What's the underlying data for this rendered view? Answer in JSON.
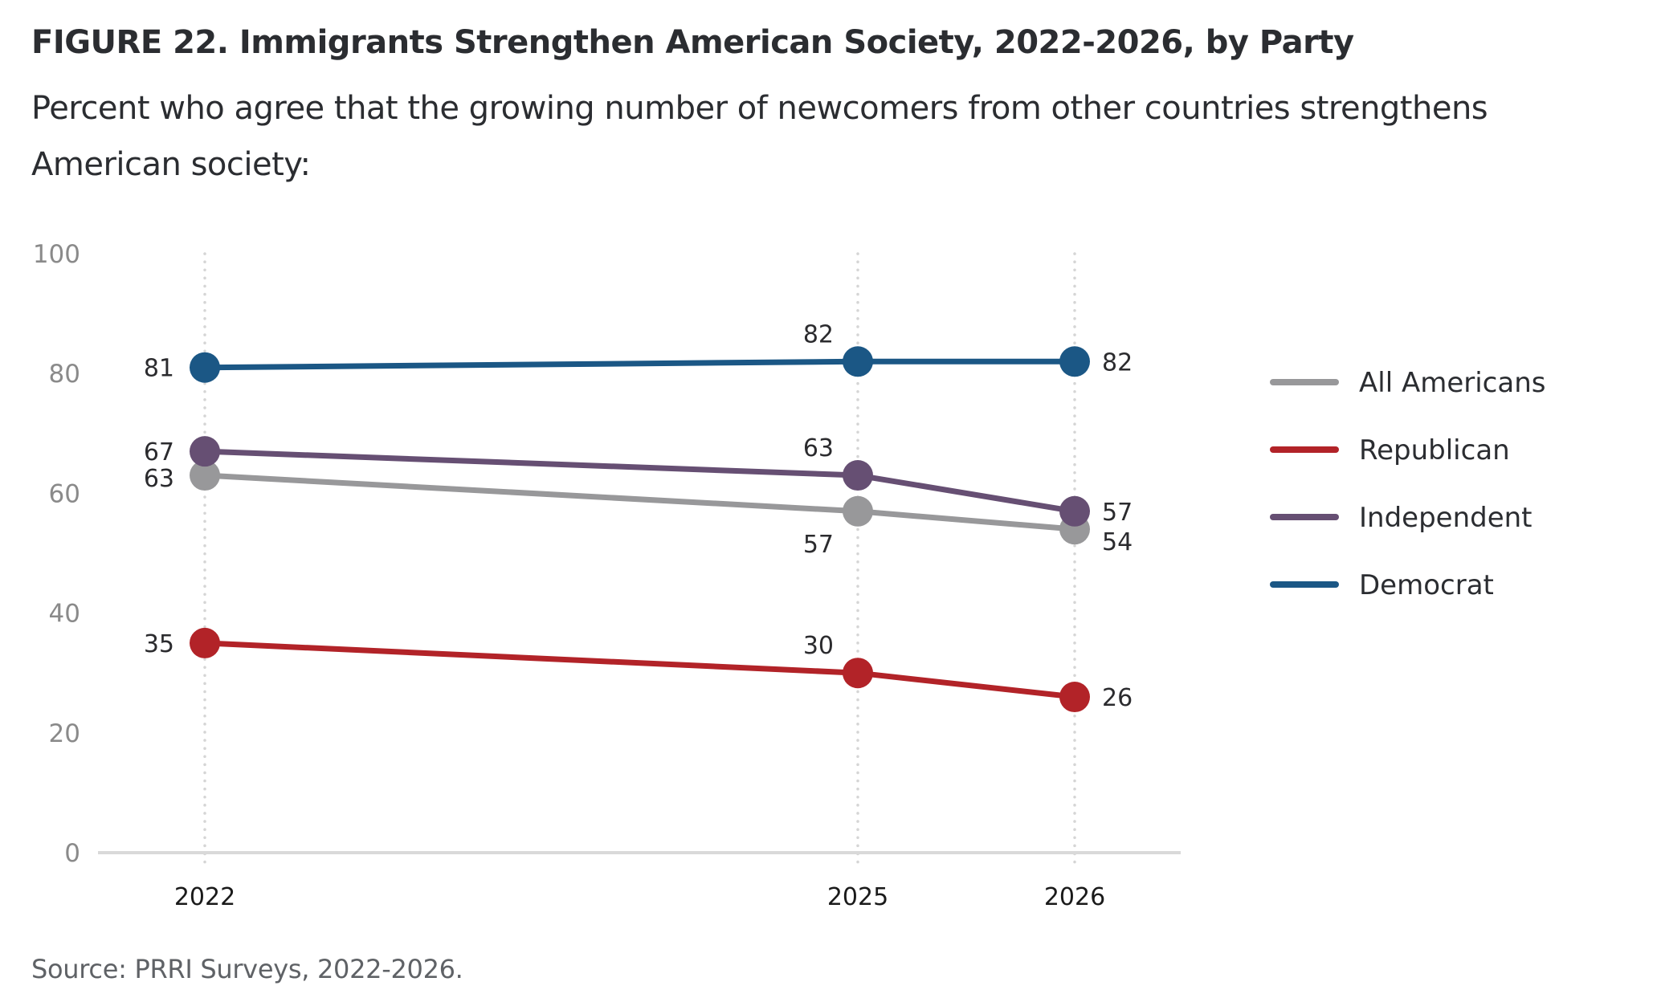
{
  "header": {
    "title": "FIGURE 22.  Immigrants Strengthen American Society, 2022-2026, by Party",
    "subtitle": "Percent who agree that the growing number of newcomers from other countries strengthens American society:"
  },
  "footer": {
    "source": "Source: PRRI Surveys, 2022-2026."
  },
  "chart_data": {
    "type": "line",
    "title": "FIGURE 22.  Immigrants Strengthen American Society, 2022-2026, by Party",
    "subtitle": "Percent who agree that the growing number of newcomers from other countries strengthens American society:",
    "xlabel": "",
    "ylabel": "",
    "x": [
      2022,
      2025,
      2026
    ],
    "x_tick_labels": [
      "2022",
      "2025",
      "2026"
    ],
    "xlim": [
      2021.5,
      2026.5
    ],
    "ylim": [
      0,
      100
    ],
    "y_ticks": [
      0,
      20,
      40,
      60,
      80,
      100
    ],
    "y_tick_labels": [
      "0",
      "20",
      "40",
      "60",
      "80",
      "100"
    ],
    "grid": "vertical dotted lines at each x category",
    "legend_position": "right",
    "series": [
      {
        "name": "All Americans",
        "color": "#98989a",
        "values": [
          63,
          57,
          54
        ],
        "label_sides": [
          "left",
          "below-left",
          "right-below"
        ]
      },
      {
        "name": "Republican",
        "color": "#b22328",
        "values": [
          35,
          30,
          26
        ],
        "label_sides": [
          "left",
          "above-left",
          "right"
        ]
      },
      {
        "name": "Independent",
        "color": "#664f73",
        "values": [
          67,
          63,
          57
        ],
        "label_sides": [
          "left",
          "above-left",
          "right"
        ]
      },
      {
        "name": "Democrat",
        "color": "#1b5785",
        "values": [
          81,
          82,
          82
        ],
        "label_sides": [
          "left",
          "above-left",
          "right"
        ]
      }
    ]
  }
}
